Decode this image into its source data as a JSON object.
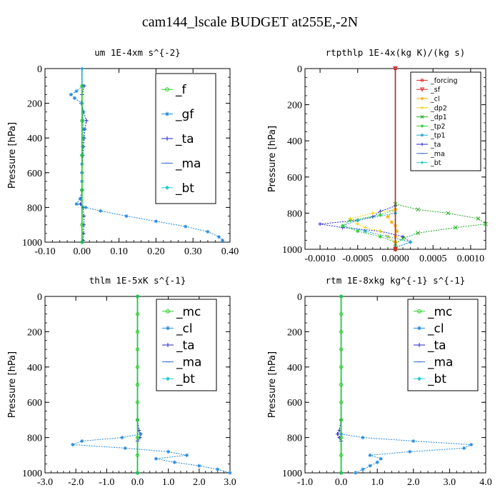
{
  "figure": {
    "title": "cam144_lscale  BUDGET at255E,-2N"
  },
  "chart_data": [
    {
      "id": "um",
      "type": "line",
      "title": "um   1E-4xm s^{-2}",
      "ylabel": "Pressure [hPa]",
      "xlim": [
        -0.1,
        0.4
      ],
      "ylim": [
        1000,
        0
      ],
      "xticks": [
        -0.1,
        0.0,
        0.1,
        0.2,
        0.3,
        0.4
      ],
      "xtick_labels": [
        "-0.10",
        "0.00",
        "0.10",
        "0.20",
        "0.30",
        "0.40"
      ],
      "yticks": [
        0,
        200,
        400,
        600,
        800,
        1000
      ],
      "ytick_labels": [
        "0",
        "200",
        "400",
        "600",
        "800",
        "1000"
      ],
      "legend_position": "top-right",
      "series": [
        {
          "name": "_f",
          "color": "#22cc22",
          "marker": "circle",
          "y": [
            100,
            300,
            500,
            700,
            900,
            1000
          ],
          "x": [
            0,
            0,
            0,
            0,
            0,
            0
          ]
        },
        {
          "name": "_gf",
          "color": "#2288dd",
          "marker": "star",
          "y": [
            100,
            130,
            150,
            170,
            200,
            250,
            300,
            350,
            400,
            450,
            500,
            550,
            600,
            650,
            700,
            750,
            780,
            800,
            820,
            850,
            880,
            910,
            940,
            970,
            990
          ],
          "x": [
            0.002,
            -0.015,
            -0.03,
            -0.02,
            0.0,
            0.003,
            0.002,
            0.004,
            0.003,
            0.002,
            0.001,
            0.0,
            0.0,
            0.0,
            0.0,
            -0.005,
            -0.015,
            0.01,
            0.05,
            0.12,
            0.2,
            0.28,
            0.34,
            0.37,
            0.38
          ]
        },
        {
          "name": "_ta",
          "color": "#2222cc",
          "marker": "plus",
          "y": [
            100,
            150,
            200,
            250,
            300,
            350,
            400,
            450,
            500,
            600,
            700,
            780,
            800,
            850,
            900,
            950,
            990
          ],
          "x": [
            0.006,
            0.0,
            -0.002,
            0.004,
            0.012,
            0.008,
            0.006,
            0.004,
            0.002,
            0.0,
            0.0,
            -0.004,
            0.003,
            0.005,
            0.005,
            0.004,
            0.003
          ]
        },
        {
          "name": "_ma",
          "color": "#3366cc",
          "marker": "dash",
          "y": [
            0,
            1000
          ],
          "x": [
            0,
            0
          ]
        },
        {
          "name": "_bt",
          "color": "#22cccc",
          "marker": "diamond",
          "y": [
            0,
            1000
          ],
          "x": [
            0,
            0
          ]
        }
      ]
    },
    {
      "id": "rtpthlp",
      "type": "line",
      "title": "rtpthlp   1E-4x(kg K)/(kg s)",
      "ylabel": "Pressure [hPa]",
      "xlim": [
        -0.0012,
        0.0012
      ],
      "ylim": [
        1000,
        0
      ],
      "xticks": [
        -0.001,
        -0.0005,
        0.0,
        0.0005,
        0.001
      ],
      "xtick_labels": [
        "-0.0010",
        "-0.0005",
        "0.0000",
        "0.0005",
        "0.0010"
      ],
      "yticks": [
        0,
        200,
        400,
        600,
        800,
        1000
      ],
      "ytick_labels": [
        "0",
        "200",
        "400",
        "600",
        "800",
        "1000"
      ],
      "legend_position": "top-right",
      "series": [
        {
          "name": "_forcing",
          "color": "#dd2222",
          "marker": "circle",
          "y": [
            0,
            1000
          ],
          "x": [
            0,
            0
          ]
        },
        {
          "name": "_sf",
          "color": "#dd2222",
          "marker": "triangle",
          "y": [
            0,
            1000
          ],
          "x": [
            0,
            0
          ]
        },
        {
          "name": "_cl",
          "color": "#ffaa00",
          "marker": "star",
          "y": [
            780,
            820,
            850,
            870,
            900,
            930,
            960
          ],
          "x": [
            0,
            -0.0001,
            -5e-05,
            0,
            2e-05,
            0,
            0
          ]
        },
        {
          "name": "_dp2",
          "color": "#eecc00",
          "marker": "plus",
          "y": [
            780,
            800,
            830,
            860,
            880,
            900,
            930,
            960,
            990
          ],
          "x": [
            0,
            -0.0003,
            -0.0006,
            -0.0005,
            -0.0004,
            -0.0002,
            -0.0001,
            0,
            0
          ]
        },
        {
          "name": "_dp1",
          "color": "#22aa22",
          "marker": "cross",
          "y": [
            750,
            780,
            800,
            830,
            860,
            880,
            910,
            940,
            970,
            1000
          ],
          "x": [
            0,
            0.0003,
            0.0007,
            0.0011,
            0.0012,
            0.0008,
            0.0003,
            0.0001,
            0,
            0
          ]
        },
        {
          "name": "_tp2",
          "color": "#33cc33",
          "marker": "star",
          "y": [
            780,
            810,
            840,
            870,
            900,
            930,
            960,
            990
          ],
          "x": [
            0,
            -0.0002,
            -0.0006,
            -0.0007,
            -0.0005,
            -0.0002,
            0,
            0
          ]
        },
        {
          "name": "_tp1",
          "color": "#22aacc",
          "marker": "star",
          "y": [
            800,
            840,
            870,
            900,
            930,
            960,
            990
          ],
          "x": [
            0,
            -0.0005,
            -0.0007,
            -0.0004,
            -0.0001,
            0.0002,
            0
          ]
        },
        {
          "name": "_ta",
          "color": "#2222cc",
          "marker": "plus",
          "y": [
            760,
            790,
            820,
            840,
            860,
            880,
            900,
            930,
            960,
            990
          ],
          "x": [
            0,
            -0.0002,
            -0.0003,
            -0.0005,
            -0.001,
            -0.0007,
            -0.0002,
            0.0001,
            0.0002,
            0
          ]
        },
        {
          "name": "_ma",
          "color": "#3366cc",
          "marker": "dash",
          "y": [
            0,
            1000
          ],
          "x": [
            0,
            0
          ]
        },
        {
          "name": "_bt",
          "color": "#22cccc",
          "marker": "diamond",
          "y": [
            0,
            1000
          ],
          "x": [
            0,
            0
          ]
        }
      ]
    },
    {
      "id": "thlm",
      "type": "line",
      "title": "thlm   1E-5xK  s^{-1}",
      "ylabel": "Pressure [hPa]",
      "xlim": [
        -3.0,
        3.0
      ],
      "ylim": [
        1000,
        0
      ],
      "xticks": [
        -3,
        -2,
        -1,
        0,
        1,
        2,
        3
      ],
      "xtick_labels": [
        "-3.0",
        "-2.0",
        "-1.0",
        "0.0",
        "1.0",
        "2.0",
        "3.0"
      ],
      "yticks": [
        0,
        200,
        400,
        600,
        800,
        1000
      ],
      "ytick_labels": [
        "0",
        "200",
        "400",
        "600",
        "800",
        "1000"
      ],
      "legend_position": "top-right",
      "series": [
        {
          "name": "_mc",
          "color": "#22cc22",
          "marker": "circle",
          "y": [
            0,
            100,
            200,
            300,
            400,
            500,
            600,
            700,
            800,
            900,
            1000
          ],
          "x": [
            0,
            0,
            0,
            0,
            0,
            0,
            0,
            0,
            0,
            0,
            0
          ]
        },
        {
          "name": "_cl",
          "color": "#2288dd",
          "marker": "star",
          "y": [
            780,
            800,
            820,
            840,
            860,
            880,
            900,
            920,
            940,
            960,
            980,
            1000
          ],
          "x": [
            0.1,
            -0.5,
            -1.8,
            -2.1,
            -0.4,
            1.0,
            1.6,
            0.6,
            1.2,
            2.0,
            2.6,
            3.0
          ]
        },
        {
          "name": "_ta",
          "color": "#2222cc",
          "marker": "plus",
          "y": [
            700,
            760,
            780,
            800,
            820
          ],
          "x": [
            0,
            0.05,
            0.1,
            0.08,
            0
          ]
        },
        {
          "name": "_ma",
          "color": "#3366cc",
          "marker": "dash",
          "y": [
            0,
            1000
          ],
          "x": [
            0,
            0
          ]
        },
        {
          "name": "_bt",
          "color": "#22cccc",
          "marker": "diamond",
          "y": [
            0,
            1000
          ],
          "x": [
            0,
            0
          ]
        }
      ]
    },
    {
      "id": "rtm",
      "type": "line",
      "title": "rtm   1E-8xkg kg^{-1} s^{-1}",
      "ylabel": "Pressure [hPa]",
      "xlim": [
        -1.0,
        4.0
      ],
      "ylim": [
        1000,
        0
      ],
      "xticks": [
        -1,
        0,
        1,
        2,
        3,
        4
      ],
      "xtick_labels": [
        "-1.0",
        "0.0",
        "1.0",
        "2.0",
        "3.0",
        "4.0"
      ],
      "yticks": [
        0,
        200,
        400,
        600,
        800,
        1000
      ],
      "ytick_labels": [
        "0",
        "200",
        "400",
        "600",
        "800",
        "1000"
      ],
      "legend_position": "top-right",
      "series": [
        {
          "name": "_mc",
          "color": "#22cc22",
          "marker": "circle",
          "y": [
            0,
            100,
            200,
            300,
            400,
            500,
            600,
            700,
            800,
            900,
            1000
          ],
          "x": [
            0,
            0,
            0,
            0,
            0,
            0,
            0,
            0,
            0,
            0,
            0
          ]
        },
        {
          "name": "_cl",
          "color": "#2288dd",
          "marker": "star",
          "y": [
            780,
            800,
            820,
            840,
            860,
            880,
            900,
            920,
            940,
            960,
            980,
            1000
          ],
          "x": [
            0,
            0.6,
            2.0,
            3.6,
            3.4,
            1.9,
            0.8,
            1.1,
            1.0,
            0.8,
            0.6,
            0.4
          ]
        },
        {
          "name": "_ta",
          "color": "#2222cc",
          "marker": "plus",
          "y": [
            700,
            760,
            780,
            800,
            820
          ],
          "x": [
            0,
            -0.05,
            -0.1,
            -0.05,
            0
          ]
        },
        {
          "name": "_ma",
          "color": "#3366cc",
          "marker": "dash",
          "y": [
            0,
            1000
          ],
          "x": [
            0,
            0
          ]
        },
        {
          "name": "_bt",
          "color": "#22cccc",
          "marker": "diamond",
          "y": [
            0,
            1000
          ],
          "x": [
            0,
            0
          ]
        }
      ]
    }
  ]
}
